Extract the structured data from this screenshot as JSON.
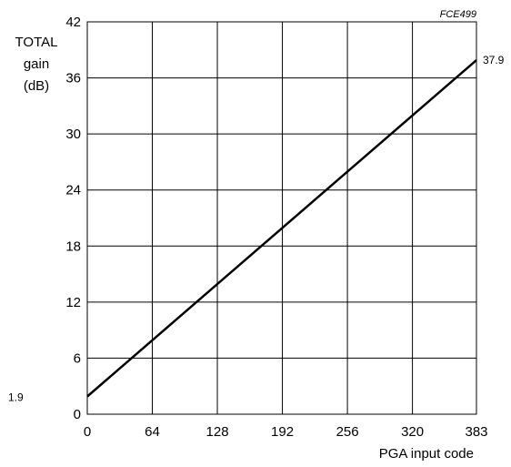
{
  "figure_code": "FCE499",
  "chart_data": {
    "type": "line",
    "title": "",
    "xlabel": "PGA input code",
    "ylabel_lines": [
      "TOTAL",
      "gain",
      "(dB)"
    ],
    "xlim": [
      0,
      383
    ],
    "ylim": [
      0,
      42
    ],
    "x_ticks": [
      "0",
      "64",
      "128",
      "192",
      "256",
      "320",
      "383"
    ],
    "y_ticks": [
      "0",
      "6",
      "12",
      "18",
      "24",
      "30",
      "36",
      "42"
    ],
    "grid": true,
    "series": [
      {
        "x": [
          0,
          383
        ],
        "y": [
          1.9,
          37.9
        ],
        "color": "#000000"
      }
    ],
    "annotations": [
      {
        "text": "1.9",
        "x": 0,
        "y": 1.9
      },
      {
        "text": "37.9",
        "x": 383,
        "y": 37.9
      }
    ]
  }
}
